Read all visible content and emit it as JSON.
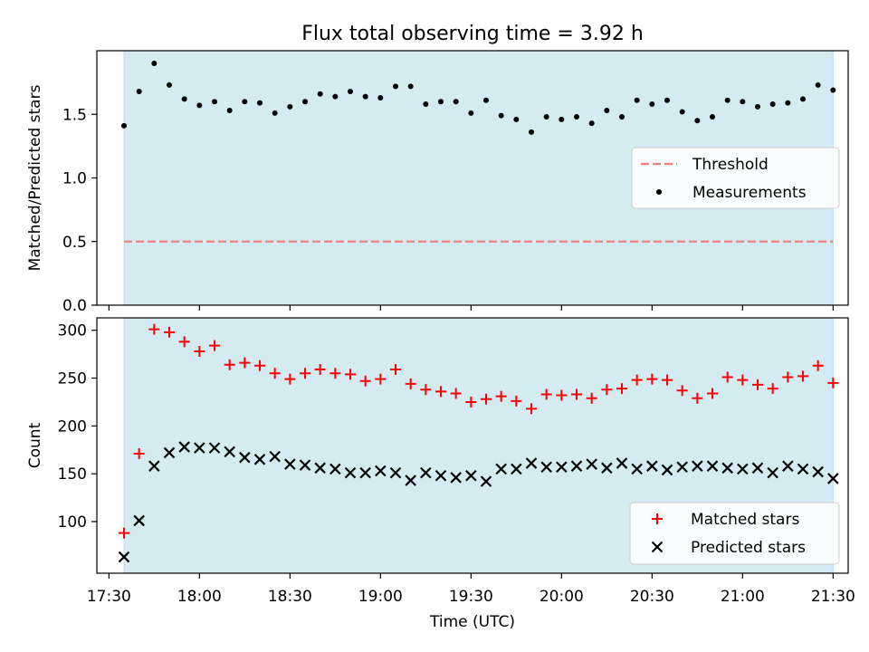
{
  "title": "Flux total observing time = 3.92 h",
  "chart_data": [
    {
      "type": "scatter",
      "ylabel": "Matched/Predicted stars",
      "xlabel": "",
      "xlim": [
        "17:26",
        "21:35"
      ],
      "ylim": [
        0,
        2.0
      ],
      "yticks": [
        0.0,
        0.5,
        1.0,
        1.5
      ],
      "ytick_labels": [
        "0.0",
        "0.5",
        "1.0",
        "1.5"
      ],
      "grid": false,
      "shaded_span": {
        "start": "17:35",
        "end": "21:30",
        "color": "#add8e6"
      },
      "threshold": {
        "name": "Threshold",
        "value": 0.5,
        "color": "#f08080"
      },
      "legend_position": "center-right",
      "legend": [
        "Threshold",
        "Measurements"
      ],
      "series": [
        {
          "name": "Measurements",
          "marker": "dot",
          "color": "#000000",
          "x": [
            "17:35",
            "17:40",
            "17:45",
            "17:50",
            "17:55",
            "18:00",
            "18:05",
            "18:10",
            "18:15",
            "18:20",
            "18:25",
            "18:30",
            "18:35",
            "18:40",
            "18:45",
            "18:50",
            "18:55",
            "19:00",
            "19:05",
            "19:10",
            "19:15",
            "19:20",
            "19:25",
            "19:30",
            "19:35",
            "19:40",
            "19:45",
            "19:50",
            "19:55",
            "20:00",
            "20:05",
            "20:10",
            "20:15",
            "20:20",
            "20:25",
            "20:30",
            "20:35",
            "20:40",
            "20:45",
            "20:50",
            "20:55",
            "21:00",
            "21:05",
            "21:10",
            "21:15",
            "21:20",
            "21:25",
            "21:30"
          ],
          "y": [
            1.41,
            1.68,
            1.9,
            1.73,
            1.62,
            1.57,
            1.6,
            1.53,
            1.6,
            1.59,
            1.51,
            1.56,
            1.6,
            1.66,
            1.64,
            1.68,
            1.64,
            1.63,
            1.72,
            1.72,
            1.58,
            1.6,
            1.6,
            1.51,
            1.61,
            1.49,
            1.46,
            1.36,
            1.48,
            1.46,
            1.48,
            1.43,
            1.53,
            1.48,
            1.61,
            1.58,
            1.61,
            1.52,
            1.45,
            1.48,
            1.61,
            1.6,
            1.56,
            1.58,
            1.59,
            1.62,
            1.73,
            1.69
          ]
        }
      ]
    },
    {
      "type": "scatter",
      "ylabel": "Count",
      "xlabel": "Time (UTC)",
      "xlim": [
        "17:26",
        "21:35"
      ],
      "ylim": [
        46,
        313
      ],
      "yticks": [
        100,
        150,
        200,
        250,
        300
      ],
      "ytick_labels": [
        "100",
        "150",
        "200",
        "250",
        "300"
      ],
      "xticks": [
        "17:30",
        "18:00",
        "18:30",
        "19:00",
        "19:30",
        "20:00",
        "20:30",
        "21:00",
        "21:30"
      ],
      "xtick_labels": [
        "17:30",
        "18:00",
        "18:30",
        "19:00",
        "19:30",
        "20:00",
        "20:30",
        "21:00",
        "21:30"
      ],
      "grid": false,
      "shaded_span": {
        "start": "17:35",
        "end": "21:30",
        "color": "#add8e6"
      },
      "legend_position": "bottom-right",
      "legend": [
        "Matched stars",
        "Predicted stars"
      ],
      "series": [
        {
          "name": "Matched stars",
          "marker": "plus",
          "color": "#ff0000",
          "x": [
            "17:35",
            "17:40",
            "17:45",
            "17:50",
            "17:55",
            "18:00",
            "18:05",
            "18:10",
            "18:15",
            "18:20",
            "18:25",
            "18:30",
            "18:35",
            "18:40",
            "18:45",
            "18:50",
            "18:55",
            "19:00",
            "19:05",
            "19:10",
            "19:15",
            "19:20",
            "19:25",
            "19:30",
            "19:35",
            "19:40",
            "19:45",
            "19:50",
            "19:55",
            "20:00",
            "20:05",
            "20:10",
            "20:15",
            "20:20",
            "20:25",
            "20:30",
            "20:35",
            "20:40",
            "20:45",
            "20:50",
            "20:55",
            "21:00",
            "21:05",
            "21:10",
            "21:15",
            "21:20",
            "21:25",
            "21:30"
          ],
          "y": [
            88,
            171,
            301,
            298,
            288,
            278,
            284,
            264,
            266,
            263,
            255,
            249,
            255,
            259,
            255,
            254,
            247,
            249,
            259,
            244,
            238,
            236,
            234,
            225,
            228,
            231,
            226,
            218,
            233,
            232,
            233,
            229,
            238,
            239,
            248,
            249,
            248,
            237,
            229,
            234,
            251,
            248,
            243,
            239,
            251,
            252,
            263,
            245
          ]
        },
        {
          "name": "Predicted stars",
          "marker": "x",
          "color": "#000000",
          "x": [
            "17:35",
            "17:40",
            "17:45",
            "17:50",
            "17:55",
            "18:00",
            "18:05",
            "18:10",
            "18:15",
            "18:20",
            "18:25",
            "18:30",
            "18:35",
            "18:40",
            "18:45",
            "18:50",
            "18:55",
            "19:00",
            "19:05",
            "19:10",
            "19:15",
            "19:20",
            "19:25",
            "19:30",
            "19:35",
            "19:40",
            "19:45",
            "19:50",
            "19:55",
            "20:00",
            "20:05",
            "20:10",
            "20:15",
            "20:20",
            "20:25",
            "20:30",
            "20:35",
            "20:40",
            "20:45",
            "20:50",
            "20:55",
            "21:00",
            "21:05",
            "21:10",
            "21:15",
            "21:20",
            "21:25",
            "21:30"
          ],
          "y": [
            63,
            101,
            158,
            172,
            178,
            177,
            177,
            173,
            167,
            165,
            168,
            160,
            159,
            156,
            155,
            151,
            151,
            153,
            151,
            143,
            151,
            148,
            146,
            148,
            142,
            155,
            155,
            161,
            157,
            157,
            158,
            160,
            156,
            161,
            155,
            158,
            154,
            157,
            158,
            158,
            156,
            155,
            156,
            151,
            158,
            155,
            152,
            145
          ]
        }
      ]
    }
  ]
}
